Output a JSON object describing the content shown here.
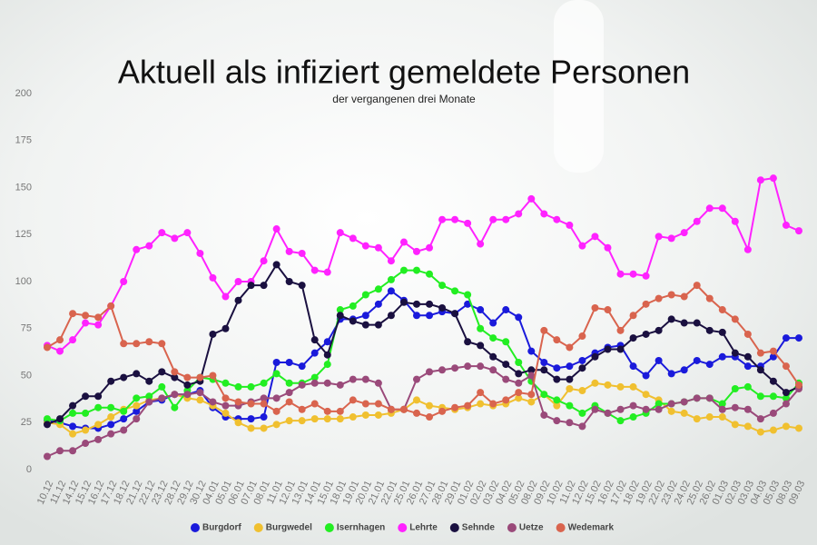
{
  "chart_data": {
    "type": "line",
    "title": "Aktuell als infiziert gemeldete Personen",
    "subtitle": "der vergangenen drei Monate",
    "categories": [
      "10.12",
      "11.12",
      "14.12",
      "15.12",
      "16.12",
      "17.12",
      "18.12",
      "21.12",
      "22.12",
      "23.12",
      "28.12",
      "29.12",
      "30.12",
      "04.01",
      "05.01",
      "06.01",
      "07.01",
      "08.01",
      "11.01",
      "12.01",
      "13.01",
      "14.01",
      "15.01",
      "18.01",
      "19.01",
      "20.01",
      "21.01",
      "22.01",
      "25.01",
      "26.01",
      "27.01",
      "28.01",
      "29.01",
      "01.02",
      "02.02",
      "03.02",
      "04.02",
      "05.02",
      "08.02",
      "09.02",
      "10.02",
      "11.02",
      "12.02",
      "15.02",
      "16.02",
      "17.02",
      "18.02",
      "19.02",
      "22.02",
      "23.02",
      "24.02",
      "25.02",
      "26.02",
      "01.03",
      "02.03",
      "03.03",
      "04.03",
      "05.03",
      "08.03",
      "09.03"
    ],
    "ylim": [
      0,
      200
    ],
    "yticks": [
      0,
      25,
      50,
      75,
      100,
      125,
      150,
      175,
      200
    ],
    "grid": false,
    "legend": "bottom",
    "series": [
      {
        "name": "Burgdorf",
        "color": "#1a1adb",
        "values": [
          26,
          25,
          23,
          22,
          22,
          24,
          27,
          31,
          36,
          37,
          40,
          40,
          42,
          33,
          28,
          27,
          27,
          28,
          57,
          57,
          55,
          62,
          68,
          80,
          80,
          82,
          88,
          95,
          90,
          82,
          82,
          84,
          83,
          88,
          85,
          78,
          85,
          81,
          63,
          57,
          54,
          55,
          58,
          62,
          65,
          66,
          55,
          50,
          58,
          51,
          53,
          58,
          56,
          60,
          60,
          55,
          55,
          60,
          70,
          70
        ]
      },
      {
        "name": "Burgwedel",
        "color": "#f0c030",
        "values": [
          25,
          24,
          19,
          21,
          24,
          28,
          32,
          34,
          37,
          38,
          40,
          38,
          37,
          34,
          30,
          25,
          22,
          22,
          24,
          26,
          26,
          27,
          27,
          27,
          28,
          29,
          29,
          30,
          32,
          37,
          34,
          33,
          32,
          33,
          35,
          34,
          35,
          38,
          36,
          40,
          34,
          43,
          42,
          46,
          45,
          44,
          44,
          40,
          37,
          31,
          30,
          27,
          28,
          28,
          24,
          23,
          20,
          21,
          23,
          22
        ]
      },
      {
        "name": "Isernhagen",
        "color": "#22ee22",
        "values": [
          27,
          26,
          30,
          30,
          33,
          33,
          31,
          38,
          39,
          44,
          33,
          42,
          49,
          48,
          46,
          44,
          44,
          46,
          51,
          46,
          46,
          49,
          56,
          85,
          87,
          93,
          96,
          101,
          106,
          106,
          104,
          98,
          95,
          93,
          75,
          70,
          68,
          57,
          47,
          40,
          37,
          34,
          30,
          34,
          30,
          26,
          28,
          30,
          35,
          35,
          36,
          38,
          38,
          35,
          43,
          44,
          39,
          39,
          38,
          46
        ]
      },
      {
        "name": "Lehrte",
        "color": "#ff22ff",
        "values": [
          66,
          63,
          69,
          78,
          77,
          87,
          100,
          117,
          119,
          126,
          123,
          126,
          115,
          102,
          92,
          100,
          100,
          111,
          128,
          116,
          115,
          106,
          105,
          126,
          123,
          119,
          118,
          111,
          121,
          116,
          118,
          133,
          133,
          131,
          120,
          133,
          133,
          136,
          144,
          136,
          133,
          130,
          119,
          124,
          118,
          104,
          104,
          103,
          124,
          123,
          126,
          132,
          139,
          139,
          132,
          117,
          154,
          155,
          130,
          127
        ]
      },
      {
        "name": "Sehnde",
        "color": "#1a1040",
        "values": [
          24,
          27,
          34,
          39,
          39,
          47,
          49,
          51,
          47,
          52,
          49,
          45,
          47,
          72,
          75,
          90,
          98,
          98,
          109,
          100,
          98,
          69,
          61,
          82,
          79,
          77,
          77,
          82,
          89,
          88,
          88,
          86,
          83,
          68,
          66,
          60,
          56,
          51,
          53,
          53,
          48,
          48,
          54,
          60,
          64,
          64,
          70,
          72,
          74,
          80,
          78,
          78,
          74,
          73,
          62,
          60,
          53,
          47,
          41,
          44
        ]
      },
      {
        "name": "Uetze",
        "color": "#9a4a7a",
        "values": [
          7,
          10,
          10,
          14,
          16,
          19,
          21,
          27,
          36,
          38,
          40,
          40,
          41,
          36,
          34,
          34,
          36,
          38,
          38,
          41,
          45,
          46,
          46,
          45,
          48,
          48,
          46,
          32,
          32,
          48,
          52,
          53,
          54,
          55,
          55,
          53,
          48,
          46,
          50,
          29,
          26,
          25,
          23,
          32,
          30,
          32,
          34,
          32,
          32,
          35,
          36,
          38,
          38,
          32,
          33,
          32,
          27,
          30,
          35,
          43
        ]
      },
      {
        "name": "Wedemark",
        "color": "#d9644e",
        "values": [
          65,
          69,
          83,
          82,
          81,
          87,
          67,
          67,
          68,
          67,
          52,
          49,
          49,
          50,
          38,
          36,
          35,
          35,
          31,
          36,
          32,
          35,
          31,
          31,
          37,
          35,
          35,
          32,
          32,
          30,
          28,
          31,
          33,
          34,
          41,
          35,
          37,
          41,
          40,
          74,
          69,
          65,
          71,
          86,
          85,
          74,
          82,
          88,
          91,
          93,
          92,
          98,
          91,
          85,
          80,
          72,
          62,
          63,
          55,
          45
        ]
      }
    ]
  }
}
